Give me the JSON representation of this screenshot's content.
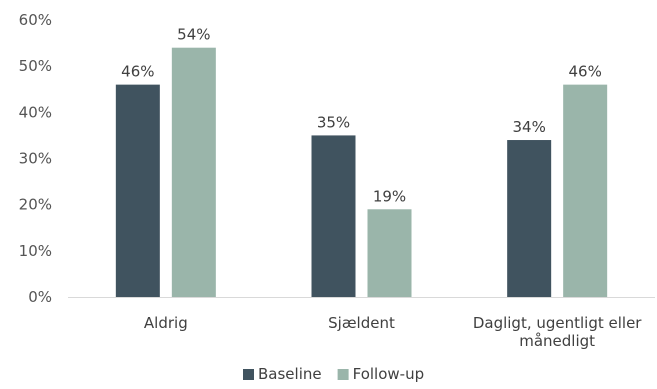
{
  "chart_data": {
    "type": "bar",
    "categories": [
      [
        "Aldrig"
      ],
      [
        "Sjældent"
      ],
      [
        "Dagligt, ugentligt eller",
        "månedligt"
      ]
    ],
    "series": [
      {
        "name": "Baseline",
        "color": "#40535F",
        "values": [
          46,
          35,
          34
        ],
        "labels": [
          "46%",
          "35%",
          "34%"
        ]
      },
      {
        "name": "Follow-up",
        "color": "#9AB5AA",
        "values": [
          54,
          19,
          46
        ],
        "labels": [
          "54%",
          "19%",
          "46%"
        ]
      }
    ],
    "yticks": [
      "0%",
      "10%",
      "20%",
      "30%",
      "40%",
      "50%",
      "60%"
    ],
    "ylim": [
      0,
      60
    ],
    "grid": false,
    "legend": "bottom"
  }
}
